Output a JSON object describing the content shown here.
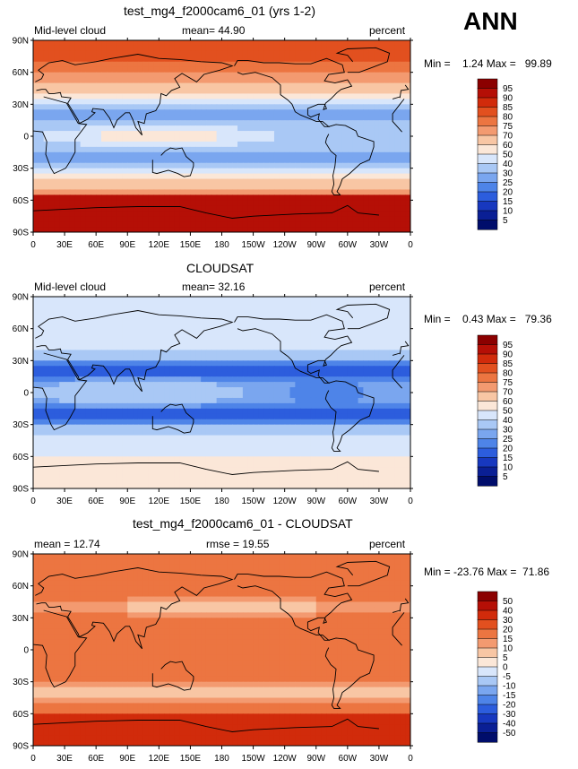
{
  "season": "ANN",
  "panels": [
    {
      "title": "test_mg4_f2000cam6_01 (yrs 1-2)",
      "left_label": "Mid-level cloud",
      "center_label": "mean=  44.90",
      "right_label": "percent",
      "minmax": "Min =    1.24 Max =   99.89",
      "colorbar_levels": [
        "95",
        "90",
        "85",
        "80",
        "75",
        "70",
        "60",
        "50",
        "40",
        "30",
        "25",
        "20",
        "15",
        "10",
        "5"
      ],
      "colorbar_colors": [
        "#8b0000",
        "#b50f06",
        "#d12b0b",
        "#e2501f",
        "#ec7541",
        "#f39a70",
        "#f8c6a4",
        "#fbe7d8",
        "#d8e6fb",
        "#a9c8f5",
        "#7aa6ef",
        "#4e84e8",
        "#2c5ddd",
        "#1738bf",
        "#0a1f95",
        "#000d6b"
      ],
      "colorscale": "sequential"
    },
    {
      "title": "CLOUDSAT",
      "left_label": "Mid-level cloud",
      "center_label": "mean=  32.16",
      "right_label": "percent",
      "minmax": "Min =    0.43 Max =   79.36",
      "colorbar_levels": [
        "95",
        "90",
        "85",
        "80",
        "75",
        "70",
        "60",
        "50",
        "40",
        "30",
        "25",
        "20",
        "15",
        "10",
        "5"
      ],
      "colorbar_colors": [
        "#8b0000",
        "#b50f06",
        "#d12b0b",
        "#e2501f",
        "#ec7541",
        "#f39a70",
        "#f8c6a4",
        "#fbe7d8",
        "#d8e6fb",
        "#a9c8f5",
        "#7aa6ef",
        "#4e84e8",
        "#2c5ddd",
        "#1738bf",
        "#0a1f95",
        "#000d6b"
      ],
      "colorscale": "sequential"
    },
    {
      "title": "test_mg4_f2000cam6_01 - CLOUDSAT",
      "left_label": "mean =  12.74",
      "center_label": "rmse =  19.55",
      "right_label": "percent",
      "minmax": "Min = -23.76 Max =  71.86",
      "colorbar_levels": [
        "50",
        "40",
        "30",
        "20",
        "15",
        "10",
        "5",
        "0",
        "-5",
        "-10",
        "-15",
        "-20",
        "-30",
        "-40",
        "-50"
      ],
      "colorbar_colors": [
        "#8b0000",
        "#b50f06",
        "#d12b0b",
        "#e2501f",
        "#ec7541",
        "#f39a70",
        "#f8c6a4",
        "#fbe7d8",
        "#d8e6fb",
        "#a9c8f5",
        "#7aa6ef",
        "#4e84e8",
        "#2c5ddd",
        "#1738bf",
        "#0a1f95",
        "#000d6b"
      ],
      "colorscale": "diverging"
    }
  ],
  "lat_ticks": [
    "90N",
    "60N",
    "30N",
    "0",
    "30S",
    "60S",
    "90S"
  ],
  "lon_ticks": [
    "0",
    "30E",
    "60E",
    "90E",
    "120E",
    "150E",
    "180",
    "150W",
    "120W",
    "90W",
    "60W",
    "30W",
    "0"
  ]
}
